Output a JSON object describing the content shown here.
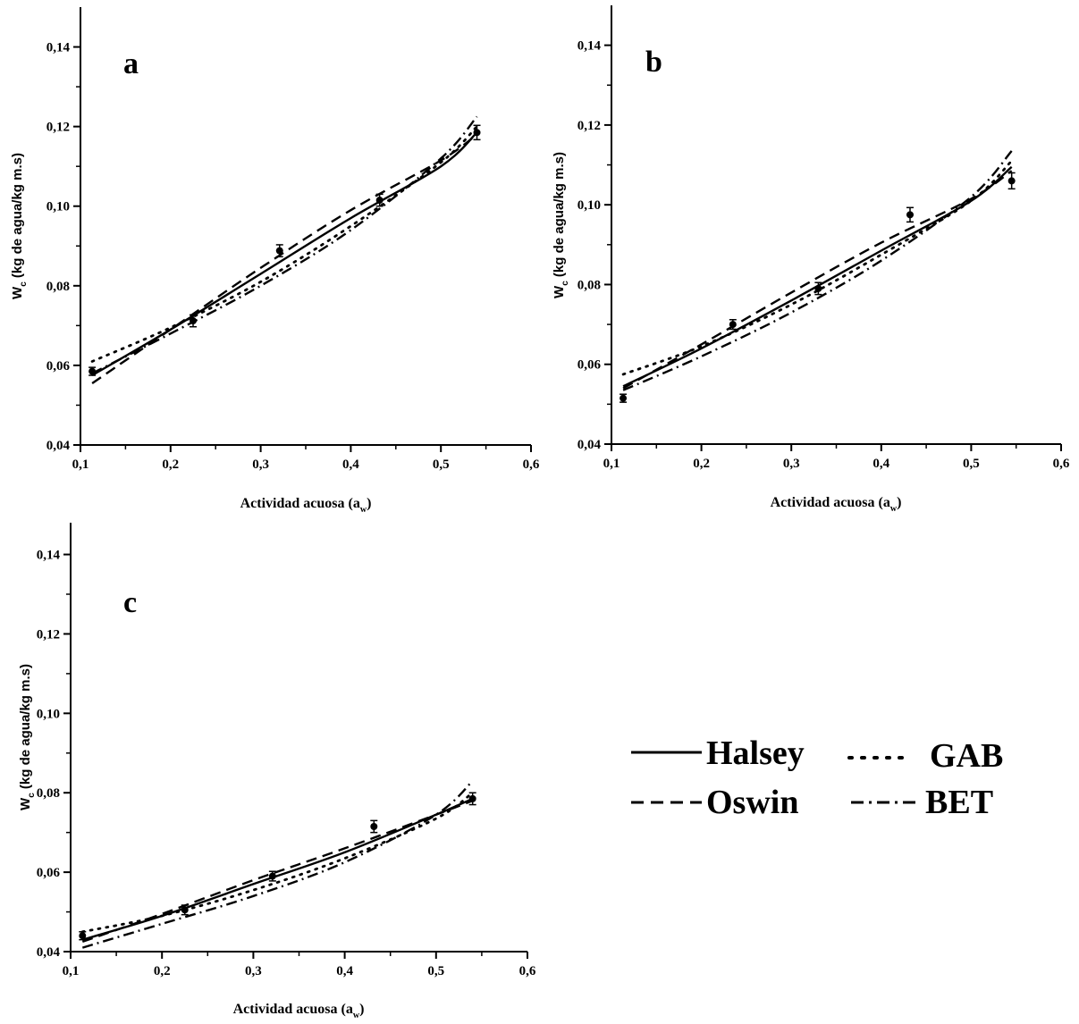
{
  "chart_data": [
    {
      "type": "line",
      "title": "a",
      "xlabel": "Actividad acuosa (a",
      "xlabel_sub": "w",
      "ylabel": "W",
      "ylabel_sub": "c",
      "ylabel_rest": " (kg de agua/kg m.s)",
      "xlim": [
        0.1,
        0.6
      ],
      "ylim": [
        0.04,
        0.15
      ],
      "xticks": [
        "0,1",
        "0,2",
        "0,3",
        "0,4",
        "0,5",
        "0,6"
      ],
      "yticks": [
        "0,04",
        "0,06",
        "0,08",
        "0,10",
        "0,12",
        "0,14"
      ],
      "points": {
        "x": [
          0.113,
          0.225,
          0.321,
          0.432,
          0.54
        ],
        "y": [
          0.0585,
          0.0712,
          0.0888,
          0.1015,
          0.1185
        ],
        "err": [
          0.001,
          0.0015,
          0.0015,
          0.0015,
          0.0018
        ]
      },
      "series": [
        {
          "name": "Halsey",
          "x": [
            0.113,
            0.2,
            0.3,
            0.4,
            0.5,
            0.54
          ],
          "y": [
            0.0575,
            0.069,
            0.083,
            0.097,
            0.11,
            0.1185
          ]
        },
        {
          "name": "Oswin",
          "x": [
            0.113,
            0.2,
            0.3,
            0.4,
            0.5,
            0.54
          ],
          "y": [
            0.0555,
            0.069,
            0.0845,
            0.099,
            0.1115,
            0.118
          ]
        },
        {
          "name": "GAB",
          "x": [
            0.113,
            0.2,
            0.3,
            0.4,
            0.5,
            0.54
          ],
          "y": [
            0.061,
            0.0695,
            0.081,
            0.095,
            0.111,
            0.12
          ]
        },
        {
          "name": "BET",
          "x": [
            0.113,
            0.2,
            0.3,
            0.4,
            0.5,
            0.54
          ],
          "y": [
            0.058,
            0.068,
            0.08,
            0.094,
            0.112,
            0.1225
          ]
        }
      ]
    },
    {
      "type": "line",
      "title": "b",
      "xlabel": "Actividad acuosa (a",
      "xlabel_sub": "w",
      "ylabel": "W",
      "ylabel_sub": "c",
      "ylabel_rest": " (kg de agua/kg m.s)",
      "xlim": [
        0.1,
        0.6
      ],
      "ylim": [
        0.04,
        0.15
      ],
      "xticks": [
        "0,1",
        "0,2",
        "0,3",
        "0,4",
        "0,5",
        "0,6"
      ],
      "yticks": [
        "0,04",
        "0,06",
        "0,08",
        "0,10",
        "0,12",
        "0,14"
      ],
      "points": {
        "x": [
          0.113,
          0.235,
          0.33,
          0.432,
          0.545
        ],
        "y": [
          0.0515,
          0.07,
          0.079,
          0.0975,
          0.106
        ],
        "err": [
          0.001,
          0.0012,
          0.0015,
          0.0018,
          0.002
        ]
      },
      "series": [
        {
          "name": "Halsey",
          "x": [
            0.113,
            0.2,
            0.3,
            0.4,
            0.5,
            0.545
          ],
          "y": [
            0.0545,
            0.064,
            0.076,
            0.0885,
            0.101,
            0.1095
          ]
        },
        {
          "name": "Oswin",
          "x": [
            0.113,
            0.2,
            0.3,
            0.4,
            0.5,
            0.545
          ],
          "y": [
            0.054,
            0.065,
            0.078,
            0.0905,
            0.1015,
            0.1085
          ]
        },
        {
          "name": "GAB",
          "x": [
            0.113,
            0.2,
            0.3,
            0.4,
            0.5,
            0.545
          ],
          "y": [
            0.0575,
            0.0645,
            0.075,
            0.0875,
            0.101,
            0.111
          ]
        },
        {
          "name": "BET",
          "x": [
            0.113,
            0.2,
            0.3,
            0.4,
            0.5,
            0.545
          ],
          "y": [
            0.0535,
            0.062,
            0.073,
            0.086,
            0.102,
            0.1135
          ]
        }
      ]
    },
    {
      "type": "line",
      "title": "c",
      "xlabel": "Actividad acuosa (a",
      "xlabel_sub": "w",
      "ylabel": "W",
      "ylabel_sub": "c",
      "ylabel_rest": " (kg de agua/kg m.s)",
      "xlim": [
        0.1,
        0.6
      ],
      "ylim": [
        0.04,
        0.148
      ],
      "xticks": [
        "0,1",
        "0,2",
        "0,3",
        "0,4",
        "0,5",
        "0,6"
      ],
      "yticks": [
        "0,04",
        "0,06",
        "0,08",
        "0,10",
        "0,12",
        "0,14"
      ],
      "points": {
        "x": [
          0.113,
          0.225,
          0.321,
          0.432,
          0.54
        ],
        "y": [
          0.044,
          0.0505,
          0.059,
          0.0715,
          0.0785
        ],
        "err": [
          0.001,
          0.0012,
          0.0012,
          0.0015,
          0.0015
        ]
      },
      "series": [
        {
          "name": "Halsey",
          "x": [
            0.113,
            0.2,
            0.3,
            0.4,
            0.5,
            0.54
          ],
          "y": [
            0.043,
            0.049,
            0.057,
            0.065,
            0.0745,
            0.0785
          ]
        },
        {
          "name": "Oswin",
          "x": [
            0.113,
            0.2,
            0.3,
            0.4,
            0.5,
            0.54
          ],
          "y": [
            0.0425,
            0.0495,
            0.058,
            0.066,
            0.0745,
            0.078
          ]
        },
        {
          "name": "GAB",
          "x": [
            0.113,
            0.2,
            0.3,
            0.4,
            0.5,
            0.54
          ],
          "y": [
            0.045,
            0.049,
            0.0555,
            0.0635,
            0.0735,
            0.08
          ]
        },
        {
          "name": "BET",
          "x": [
            0.113,
            0.2,
            0.3,
            0.4,
            0.5,
            0.54
          ],
          "y": [
            0.041,
            0.047,
            0.054,
            0.0625,
            0.0745,
            0.083
          ]
        }
      ]
    }
  ],
  "legend": [
    {
      "name": "Halsey",
      "dash": "solid"
    },
    {
      "name": "GAB",
      "dash": "dotted"
    },
    {
      "name": "Oswin",
      "dash": "dashed"
    },
    {
      "name": "BET",
      "dash": "dashdot"
    }
  ]
}
